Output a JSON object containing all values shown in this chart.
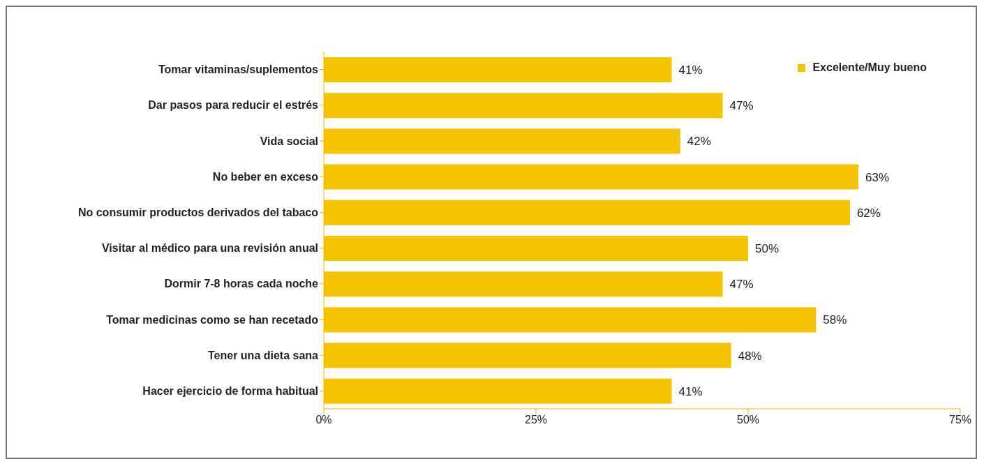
{
  "chart_data": {
    "type": "bar",
    "orientation": "horizontal",
    "categories": [
      "Tomar vitaminas/suplementos",
      "Dar pasos para reducir el estrés",
      "Vida social",
      "No beber en exceso",
      "No consumir productos derivados del tabaco",
      "Visitar al médico para una revisión anual",
      "Dormir 7-8 horas cada noche",
      "Tomar medicinas como se han recetado",
      "Tener una dieta sana",
      "Hacer ejercicio de forma habitual"
    ],
    "series": [
      {
        "name": "Excelente/Muy bueno",
        "color": "#f5c400",
        "values": [
          41,
          47,
          42,
          63,
          62,
          50,
          47,
          58,
          48,
          41
        ],
        "value_labels": [
          "41%",
          "47%",
          "42%",
          "63%",
          "62%",
          "50%",
          "47%",
          "58%",
          "48%",
          "41%"
        ]
      }
    ],
    "xlim": [
      0,
      75
    ],
    "xticks": [
      {
        "value": 0,
        "label": "0%"
      },
      {
        "value": 25,
        "label": "25%"
      },
      {
        "value": 50,
        "label": "50%"
      },
      {
        "value": 75,
        "label": "75%"
      }
    ],
    "grid": false,
    "legend": "top right"
  }
}
